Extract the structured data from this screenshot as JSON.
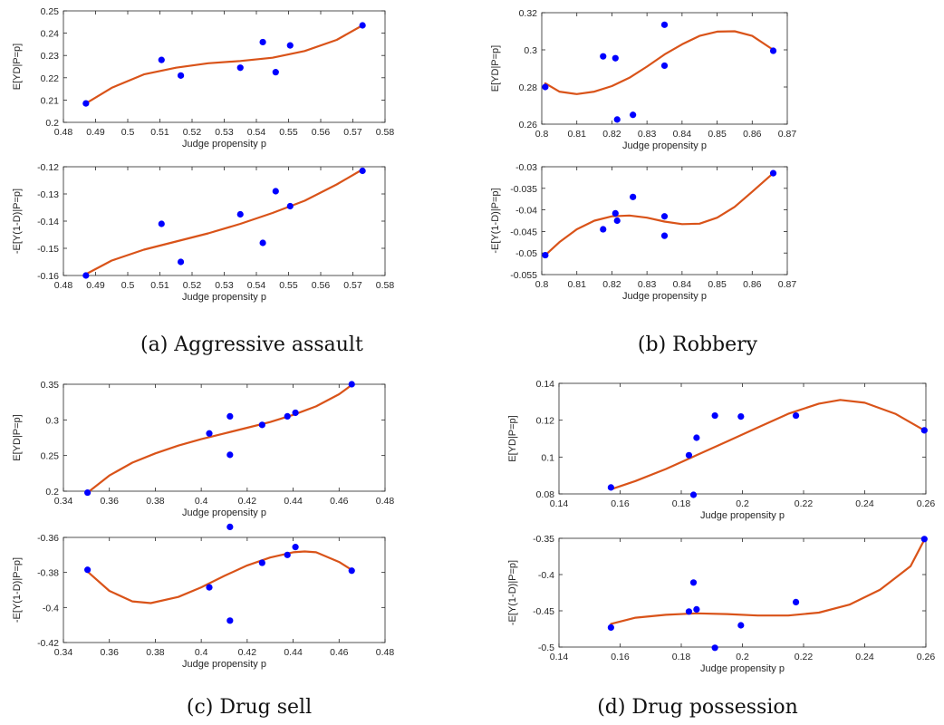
{
  "captions": {
    "a": "(a) Aggressive assault",
    "b": "(b) Robbery",
    "c": "(c) Drug sell",
    "d": "(d) Drug possession"
  },
  "colors": {
    "points": "#0000ff",
    "curve": "#d95319",
    "axes": "#262626"
  },
  "chart_data": [
    {
      "panel": "a",
      "position": "top",
      "type": "scatter",
      "xlabel": "Judge propensity p",
      "ylabel": "E[YD|P=p]",
      "xlim": [
        0.48,
        0.58
      ],
      "ylim": [
        0.2,
        0.25
      ],
      "xticks": [
        0.48,
        0.49,
        0.5,
        0.51,
        0.52,
        0.53,
        0.54,
        0.55,
        0.56,
        0.57,
        0.58
      ],
      "yticks": [
        0.2,
        0.21,
        0.22,
        0.23,
        0.24,
        0.25
      ],
      "points": [
        [
          0.487,
          0.2085
        ],
        [
          0.5105,
          0.228
        ],
        [
          0.5165,
          0.221
        ],
        [
          0.535,
          0.2245
        ],
        [
          0.542,
          0.236
        ],
        [
          0.546,
          0.2225
        ],
        [
          0.5505,
          0.2345
        ],
        [
          0.573,
          0.2435
        ]
      ],
      "fit_curve": [
        [
          0.487,
          0.2085
        ],
        [
          0.495,
          0.2155
        ],
        [
          0.505,
          0.2215
        ],
        [
          0.515,
          0.2245
        ],
        [
          0.525,
          0.2265
        ],
        [
          0.535,
          0.2275
        ],
        [
          0.545,
          0.229
        ],
        [
          0.555,
          0.232
        ],
        [
          0.565,
          0.237
        ],
        [
          0.573,
          0.2435
        ]
      ]
    },
    {
      "panel": "a",
      "position": "bottom",
      "type": "scatter",
      "xlabel": "Judge propensity p",
      "ylabel": "-E[Y(1-D)|P=p]",
      "xlim": [
        0.48,
        0.58
      ],
      "ylim": [
        -0.16,
        -0.12
      ],
      "xticks": [
        0.48,
        0.49,
        0.5,
        0.51,
        0.52,
        0.53,
        0.54,
        0.55,
        0.56,
        0.57,
        0.58
      ],
      "yticks": [
        -0.16,
        -0.15,
        -0.14,
        -0.13,
        -0.12
      ],
      "points": [
        [
          0.487,
          -0.16
        ],
        [
          0.5105,
          -0.141
        ],
        [
          0.5165,
          -0.155
        ],
        [
          0.535,
          -0.1375
        ],
        [
          0.542,
          -0.148
        ],
        [
          0.546,
          -0.129
        ],
        [
          0.5505,
          -0.1345
        ],
        [
          0.573,
          -0.1215
        ]
      ],
      "fit_curve": [
        [
          0.487,
          -0.1595
        ],
        [
          0.495,
          -0.1545
        ],
        [
          0.505,
          -0.1505
        ],
        [
          0.515,
          -0.1475
        ],
        [
          0.525,
          -0.1445
        ],
        [
          0.535,
          -0.141
        ],
        [
          0.545,
          -0.137
        ],
        [
          0.555,
          -0.1325
        ],
        [
          0.565,
          -0.1265
        ],
        [
          0.573,
          -0.121
        ]
      ]
    },
    {
      "panel": "b",
      "position": "top",
      "type": "scatter",
      "xlabel": "Judge propensity p",
      "ylabel": "E[YD|P=p]",
      "xlim": [
        0.8,
        0.87
      ],
      "ylim": [
        0.26,
        0.32
      ],
      "xticks": [
        0.8,
        0.81,
        0.82,
        0.83,
        0.84,
        0.85,
        0.86,
        0.87
      ],
      "yticks": [
        0.26,
        0.28,
        0.3,
        0.32
      ],
      "points": [
        [
          0.801,
          0.28
        ],
        [
          0.8175,
          0.2965
        ],
        [
          0.821,
          0.2955
        ],
        [
          0.8215,
          0.2625
        ],
        [
          0.826,
          0.265
        ],
        [
          0.835,
          0.2915
        ],
        [
          0.835,
          0.3135
        ],
        [
          0.866,
          0.2995
        ]
      ],
      "fit_curve": [
        [
          0.801,
          0.282
        ],
        [
          0.805,
          0.2775
        ],
        [
          0.81,
          0.2762
        ],
        [
          0.815,
          0.2775
        ],
        [
          0.82,
          0.2805
        ],
        [
          0.825,
          0.285
        ],
        [
          0.83,
          0.291
        ],
        [
          0.835,
          0.2975
        ],
        [
          0.84,
          0.303
        ],
        [
          0.845,
          0.3075
        ],
        [
          0.85,
          0.3098
        ],
        [
          0.855,
          0.31
        ],
        [
          0.86,
          0.3075
        ],
        [
          0.866,
          0.3
        ]
      ]
    },
    {
      "panel": "b",
      "position": "bottom",
      "type": "scatter",
      "xlabel": "Judge propensity p",
      "ylabel": "-E[Y(1-D)|P=p]",
      "xlim": [
        0.8,
        0.87
      ],
      "ylim": [
        -0.055,
        -0.03
      ],
      "xticks": [
        0.8,
        0.81,
        0.82,
        0.83,
        0.84,
        0.85,
        0.86,
        0.87
      ],
      "yticks": [
        -0.055,
        -0.05,
        -0.045,
        -0.04,
        -0.035,
        -0.03
      ],
      "points": [
        [
          0.801,
          -0.0505
        ],
        [
          0.8175,
          -0.0445
        ],
        [
          0.821,
          -0.0408
        ],
        [
          0.8215,
          -0.0425
        ],
        [
          0.826,
          -0.037
        ],
        [
          0.835,
          -0.0415
        ],
        [
          0.835,
          -0.046
        ],
        [
          0.866,
          -0.0315
        ]
      ],
      "fit_curve": [
        [
          0.801,
          -0.0505
        ],
        [
          0.805,
          -0.0475
        ],
        [
          0.81,
          -0.0445
        ],
        [
          0.815,
          -0.0425
        ],
        [
          0.82,
          -0.0415
        ],
        [
          0.825,
          -0.0413
        ],
        [
          0.83,
          -0.0418
        ],
        [
          0.835,
          -0.0427
        ],
        [
          0.84,
          -0.0433
        ],
        [
          0.845,
          -0.0432
        ],
        [
          0.85,
          -0.0418
        ],
        [
          0.855,
          -0.0393
        ],
        [
          0.86,
          -0.0358
        ],
        [
          0.866,
          -0.0315
        ]
      ]
    },
    {
      "panel": "c",
      "position": "top",
      "type": "scatter",
      "xlabel": "Judge propensity p",
      "ylabel": "E[YD|P=p]",
      "xlim": [
        0.34,
        0.48
      ],
      "ylim": [
        0.2,
        0.35
      ],
      "xticks": [
        0.34,
        0.36,
        0.38,
        0.4,
        0.42,
        0.44,
        0.46,
        0.48
      ],
      "yticks": [
        0.2,
        0.25,
        0.3,
        0.35
      ],
      "points": [
        [
          0.3505,
          0.198
        ],
        [
          0.4035,
          0.281
        ],
        [
          0.4125,
          0.305
        ],
        [
          0.4125,
          0.251
        ],
        [
          0.4265,
          0.293
        ],
        [
          0.4375,
          0.305
        ],
        [
          0.441,
          0.31
        ],
        [
          0.4655,
          0.35
        ]
      ],
      "fit_curve": [
        [
          0.3505,
          0.198
        ],
        [
          0.36,
          0.222
        ],
        [
          0.37,
          0.24
        ],
        [
          0.38,
          0.253
        ],
        [
          0.39,
          0.264
        ],
        [
          0.4,
          0.273
        ],
        [
          0.41,
          0.281
        ],
        [
          0.42,
          0.289
        ],
        [
          0.43,
          0.297
        ],
        [
          0.44,
          0.307
        ],
        [
          0.45,
          0.319
        ],
        [
          0.46,
          0.336
        ],
        [
          0.4655,
          0.349
        ]
      ]
    },
    {
      "panel": "c",
      "position": "bottom",
      "type": "scatter",
      "xlabel": "Judge propensity p",
      "ylabel": "-E[Y(1-D)|P=p]",
      "xlim": [
        0.34,
        0.48
      ],
      "ylim": [
        -0.42,
        -0.36
      ],
      "xticks": [
        0.34,
        0.36,
        0.38,
        0.4,
        0.42,
        0.44,
        0.46,
        0.48
      ],
      "yticks": [
        -0.42,
        -0.4,
        -0.38,
        -0.36
      ],
      "points": [
        [
          0.3505,
          -0.3785
        ],
        [
          0.4035,
          -0.3885
        ],
        [
          0.4125,
          -0.354
        ],
        [
          0.4125,
          -0.4075
        ],
        [
          0.4265,
          -0.3745
        ],
        [
          0.4375,
          -0.37
        ],
        [
          0.441,
          -0.3655
        ],
        [
          0.4655,
          -0.379
        ]
      ],
      "fit_curve": [
        [
          0.3505,
          -0.3795
        ],
        [
          0.36,
          -0.3905
        ],
        [
          0.37,
          -0.3965
        ],
        [
          0.378,
          -0.3975
        ],
        [
          0.39,
          -0.394
        ],
        [
          0.4,
          -0.3885
        ],
        [
          0.41,
          -0.382
        ],
        [
          0.42,
          -0.376
        ],
        [
          0.43,
          -0.3715
        ],
        [
          0.44,
          -0.3685
        ],
        [
          0.445,
          -0.368
        ],
        [
          0.45,
          -0.3685
        ],
        [
          0.46,
          -0.374
        ],
        [
          0.4655,
          -0.3785
        ]
      ]
    },
    {
      "panel": "d",
      "position": "top",
      "type": "scatter",
      "xlabel": "Judge propensity p",
      "ylabel": "E[YD|P=p]",
      "xlim": [
        0.14,
        0.26
      ],
      "ylim": [
        0.08,
        0.14
      ],
      "xticks": [
        0.14,
        0.16,
        0.18,
        0.2,
        0.22,
        0.24,
        0.26
      ],
      "yticks": [
        0.08,
        0.1,
        0.12,
        0.14
      ],
      "points": [
        [
          0.157,
          0.0835
        ],
        [
          0.1825,
          0.101
        ],
        [
          0.184,
          0.0795
        ],
        [
          0.185,
          0.1105
        ],
        [
          0.191,
          0.1225
        ],
        [
          0.1995,
          0.122
        ],
        [
          0.2175,
          0.1225
        ],
        [
          0.2595,
          0.1145
        ]
      ],
      "fit_curve": [
        [
          0.157,
          0.0825
        ],
        [
          0.165,
          0.087
        ],
        [
          0.175,
          0.0935
        ],
        [
          0.185,
          0.101
        ],
        [
          0.195,
          0.1085
        ],
        [
          0.205,
          0.116
        ],
        [
          0.215,
          0.1235
        ],
        [
          0.225,
          0.129
        ],
        [
          0.232,
          0.131
        ],
        [
          0.24,
          0.1295
        ],
        [
          0.25,
          0.1235
        ],
        [
          0.2595,
          0.1145
        ]
      ]
    },
    {
      "panel": "d",
      "position": "bottom",
      "type": "scatter",
      "xlabel": "Judge propensity p",
      "ylabel": "-E[Y(1-D)|P=p]",
      "xlim": [
        0.14,
        0.26
      ],
      "ylim": [
        -0.5,
        -0.35
      ],
      "xticks": [
        0.14,
        0.16,
        0.18,
        0.2,
        0.22,
        0.24,
        0.26
      ],
      "yticks": [
        -0.5,
        -0.45,
        -0.4,
        -0.35
      ],
      "points": [
        [
          0.157,
          -0.473
        ],
        [
          0.1825,
          -0.451
        ],
        [
          0.184,
          -0.411
        ],
        [
          0.185,
          -0.448
        ],
        [
          0.191,
          -0.501
        ],
        [
          0.1995,
          -0.47
        ],
        [
          0.2175,
          -0.438
        ],
        [
          0.2595,
          -0.351
        ]
      ],
      "fit_curve": [
        [
          0.157,
          -0.468
        ],
        [
          0.165,
          -0.4595
        ],
        [
          0.175,
          -0.4555
        ],
        [
          0.185,
          -0.4535
        ],
        [
          0.195,
          -0.4545
        ],
        [
          0.205,
          -0.4565
        ],
        [
          0.215,
          -0.4565
        ],
        [
          0.225,
          -0.4525
        ],
        [
          0.235,
          -0.4415
        ],
        [
          0.245,
          -0.421
        ],
        [
          0.255,
          -0.3885
        ],
        [
          0.2595,
          -0.352
        ]
      ]
    }
  ]
}
